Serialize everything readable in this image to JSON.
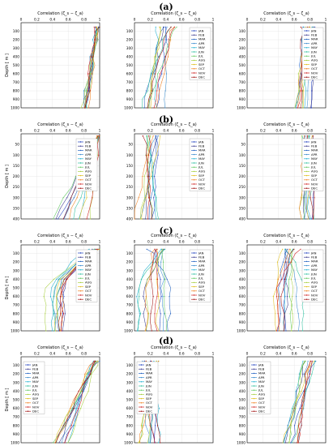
{
  "months": [
    "JAN",
    "FEB",
    "MAR",
    "APR",
    "MAY",
    "JUN",
    "JUL",
    "AUG",
    "SEP",
    "OCT",
    "NOV",
    "DEC"
  ],
  "colors": [
    "#1f3fbf",
    "#3a3a8f",
    "#2060c0",
    "#3f8fd0",
    "#20b0d0",
    "#30c0a0",
    "#60c860",
    "#a8d040",
    "#e0c020",
    "#f08020",
    "#d02020",
    "#a01010"
  ],
  "rows": [
    {
      "label": "(a)",
      "ylabel": "Depth [ m ]"
    },
    {
      "label": "(b)",
      "ylabel": "Depth [ m ]"
    },
    {
      "label": "(c)",
      "ylabel": "Depth [ m ]"
    },
    {
      "label": "(d)",
      "ylabel": "Depth [ m ]"
    }
  ],
  "chart_data": [
    {
      "type": "line",
      "row": 0,
      "col": 0,
      "title": "Correlation (ζ_s − ζ_a)",
      "xlim": [
        0,
        1
      ],
      "ylim": [
        0,
        1000
      ],
      "xticks": [
        0,
        0.2,
        0.4,
        0.6,
        0.8,
        1
      ],
      "yticks": [
        100,
        200,
        300,
        400,
        500,
        600,
        700,
        800,
        900,
        1000
      ],
      "depths": [
        50,
        100,
        200,
        300,
        400,
        500,
        600,
        700,
        800,
        900,
        1000
      ],
      "range": {
        "start": [
          0.95,
          1.0
        ],
        "end": [
          0.78,
          0.86
        ]
      },
      "legend": "none"
    },
    {
      "type": "line",
      "row": 0,
      "col": 1,
      "title": "Correlation (ζ_s − ζ_a)",
      "xlim": [
        0,
        1
      ],
      "ylim": [
        0,
        1000
      ],
      "xticks": [
        0,
        0.2,
        0.4,
        0.6,
        0.8,
        1
      ],
      "yticks": [
        100,
        200,
        300,
        400,
        500,
        600,
        700,
        800,
        900,
        1000
      ],
      "depths": [
        50,
        100,
        200,
        300,
        400,
        500,
        600,
        700,
        800,
        900,
        1000
      ],
      "range": {
        "start": [
          0.25,
          0.55
        ],
        "end": [
          0.08,
          0.4
        ]
      },
      "legend": "right"
    },
    {
      "type": "line",
      "row": 0,
      "col": 2,
      "title": "Correlation (ζ_s − ζ_a)",
      "xlim": [
        0,
        1
      ],
      "ylim": [
        0,
        1000
      ],
      "xticks": [
        0,
        0.2,
        0.4,
        0.6,
        0.8,
        1
      ],
      "yticks": [
        100,
        200,
        300,
        400,
        500,
        600,
        700,
        800,
        900,
        1000
      ],
      "depths": [
        50,
        100,
        200,
        300,
        400,
        500,
        600,
        700,
        800,
        900,
        1000
      ],
      "range": {
        "start": [
          0.7,
          0.85
        ],
        "end": [
          0.6,
          0.85
        ]
      },
      "legend": "right"
    },
    {
      "type": "line",
      "row": 1,
      "col": 0,
      "title": "Correlation (ζ_s − ζ_a)",
      "xlim": [
        0,
        1
      ],
      "ylim": [
        0,
        400
      ],
      "xticks": [
        0,
        0.2,
        0.4,
        0.6,
        0.8,
        1
      ],
      "yticks": [
        50,
        100,
        150,
        200,
        250,
        300,
        350,
        400
      ],
      "depths": [
        10,
        50,
        100,
        150,
        200,
        250,
        300,
        350,
        400
      ],
      "range": {
        "start": [
          0.98,
          1.0
        ],
        "end": [
          0.4,
          0.9
        ]
      },
      "legend": "right"
    },
    {
      "type": "line",
      "row": 1,
      "col": 1,
      "title": "Correlation (ζ_s − ζ_a)",
      "xlim": [
        0,
        1
      ],
      "ylim": [
        0,
        400
      ],
      "xticks": [
        0,
        0.2,
        0.4,
        0.6,
        0.8,
        1
      ],
      "yticks": [
        50,
        100,
        150,
        200,
        250,
        300,
        350,
        400
      ],
      "depths": [
        10,
        50,
        100,
        150,
        200,
        250,
        300,
        350,
        400
      ],
      "range": {
        "start": [
          0.12,
          0.35
        ],
        "end": [
          0.0,
          0.32
        ]
      },
      "legend": "right"
    },
    {
      "type": "line",
      "row": 1,
      "col": 2,
      "title": "Correlation (ζ_s − ζ_a)",
      "xlim": [
        0,
        1
      ],
      "ylim": [
        0,
        400
      ],
      "xticks": [
        0,
        0.2,
        0.4,
        0.6,
        0.8,
        1
      ],
      "yticks": [
        50,
        100,
        150,
        200,
        250,
        300,
        350,
        400
      ],
      "depths": [
        10,
        50,
        100,
        150,
        200,
        250,
        300,
        350,
        400
      ],
      "range": {
        "start": [
          0.7,
          0.85
        ],
        "end": [
          0.65,
          0.85
        ]
      },
      "legend": "right"
    },
    {
      "type": "line",
      "row": 2,
      "col": 0,
      "title": "Correlation (ζ_s − ζ_a)",
      "xlim": [
        0,
        1
      ],
      "ylim": [
        0,
        1000
      ],
      "xticks": [
        0,
        0.2,
        0.4,
        0.6,
        0.8,
        1
      ],
      "yticks": [
        100,
        200,
        300,
        400,
        500,
        600,
        700,
        800,
        900,
        1000
      ],
      "depths": [
        50,
        100,
        200,
        300,
        400,
        500,
        600,
        700,
        800,
        900,
        1000
      ],
      "range": {
        "start": [
          0.85,
          1.0
        ],
        "end": [
          0.3,
          0.55
        ]
      },
      "legend": "right"
    },
    {
      "type": "line",
      "row": 2,
      "col": 1,
      "title": "Correlation (ζ_s − ζ_a)",
      "xlim": [
        0,
        1
      ],
      "ylim": [
        0,
        1000
      ],
      "xticks": [
        0,
        0.2,
        0.4,
        0.6,
        0.8,
        1
      ],
      "yticks": [
        100,
        200,
        300,
        400,
        500,
        600,
        700,
        800,
        900,
        1000
      ],
      "depths": [
        50,
        100,
        200,
        300,
        400,
        500,
        600,
        700,
        800,
        900,
        1000
      ],
      "range": {
        "start": [
          0.15,
          0.4
        ],
        "end": [
          0.0,
          0.45
        ]
      },
      "legend": "right"
    },
    {
      "type": "line",
      "row": 2,
      "col": 2,
      "title": "Correlation (ζ_s − ζ_a)",
      "xlim": [
        0,
        1
      ],
      "ylim": [
        0,
        1000
      ],
      "xticks": [
        0,
        0.2,
        0.4,
        0.6,
        0.8,
        1
      ],
      "yticks": [
        100,
        200,
        300,
        400,
        500,
        600,
        700,
        800,
        900,
        1000
      ],
      "depths": [
        50,
        100,
        200,
        300,
        400,
        500,
        600,
        700,
        800,
        900,
        1000
      ],
      "range": {
        "start": [
          0.45,
          0.7
        ],
        "end": [
          0.35,
          0.75
        ]
      },
      "legend": "right"
    },
    {
      "type": "line",
      "row": 3,
      "col": 0,
      "title": "Correlation (ζ_s − ζ_a)",
      "xlim": [
        0,
        1
      ],
      "ylim": [
        0,
        1000
      ],
      "xticks": [
        0,
        0.2,
        0.4,
        0.6,
        0.8,
        1
      ],
      "yticks": [
        100,
        200,
        300,
        400,
        500,
        600,
        700,
        800,
        900,
        1000
      ],
      "depths": [
        50,
        100,
        200,
        300,
        400,
        500,
        600,
        700,
        800,
        900,
        1000
      ],
      "range": {
        "start": [
          0.9,
          1.0
        ],
        "end": [
          0.4,
          0.62
        ]
      },
      "legend": "left"
    },
    {
      "type": "line",
      "row": 3,
      "col": 1,
      "title": "Correlation (ζ_s − ζ_a)",
      "xlim": [
        0,
        1
      ],
      "ylim": [
        0,
        1000
      ],
      "xticks": [
        0,
        0.2,
        0.4,
        0.6,
        0.8,
        1
      ],
      "yticks": [
        100,
        200,
        300,
        400,
        500,
        600,
        700,
        800,
        900,
        1000
      ],
      "depths": [
        50,
        100,
        200,
        300,
        400,
        500,
        600,
        700,
        800,
        900,
        1000
      ],
      "range": {
        "start": [
          0.1,
          0.3
        ],
        "end": [
          0.0,
          0.35
        ]
      },
      "legend": "left"
    },
    {
      "type": "line",
      "row": 3,
      "col": 2,
      "title": "Correlation (ζ_s − ζ_a)",
      "xlim": [
        0,
        1
      ],
      "ylim": [
        0,
        1000
      ],
      "xticks": [
        0,
        0.2,
        0.4,
        0.6,
        0.8,
        1
      ],
      "yticks": [
        100,
        200,
        300,
        400,
        500,
        600,
        700,
        800,
        900,
        1000
      ],
      "depths": [
        50,
        100,
        200,
        300,
        400,
        500,
        600,
        700,
        800,
        900,
        1000
      ],
      "range": {
        "start": [
          0.7,
          0.88
        ],
        "end": [
          0.45,
          0.7
        ]
      },
      "legend": "left"
    }
  ]
}
